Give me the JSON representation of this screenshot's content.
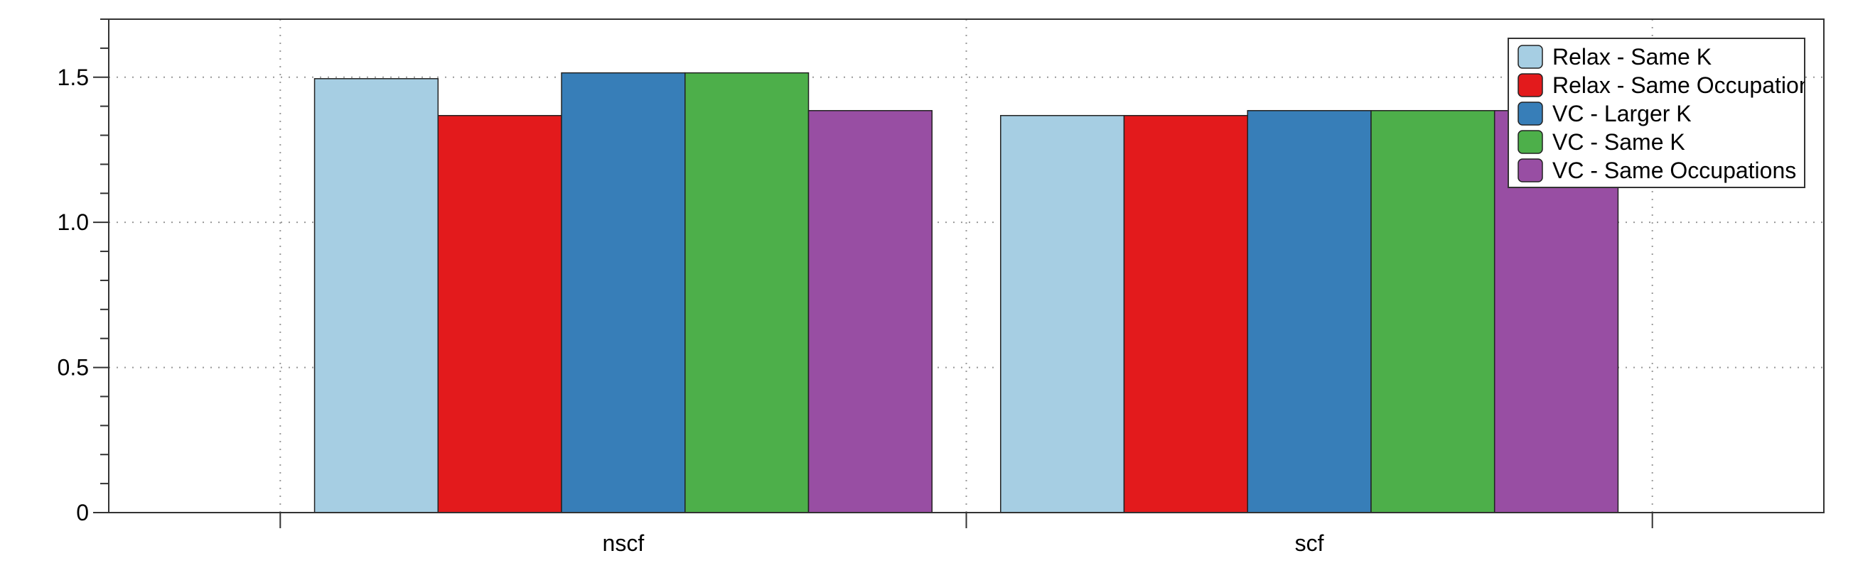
{
  "chart_data": {
    "type": "bar",
    "title": "",
    "xlabel": "",
    "ylabel": "",
    "categories": [
      "nscf",
      "scf"
    ],
    "ylim": [
      0,
      1.7
    ],
    "yticks": [
      0,
      0.5,
      1.0,
      1.5
    ],
    "ytick_labels": [
      "0",
      "0.5",
      "1.0",
      "1.5"
    ],
    "grid": true,
    "legend_position": "top-right",
    "series": [
      {
        "name": "Relax - Same K",
        "color": "#a6cee3",
        "values": [
          1.495,
          1.368
        ]
      },
      {
        "name": "Relax - Same Occupations",
        "color": "#e31a1c",
        "values": [
          1.368,
          1.368
        ]
      },
      {
        "name": "VC - Larger K",
        "color": "#377eb8",
        "values": [
          1.515,
          1.385
        ]
      },
      {
        "name": "VC - Same K",
        "color": "#4daf4a",
        "values": [
          1.515,
          1.385
        ]
      },
      {
        "name": "VC - Same Occupations",
        "color": "#984ea3",
        "values": [
          1.385,
          1.385
        ]
      }
    ]
  }
}
